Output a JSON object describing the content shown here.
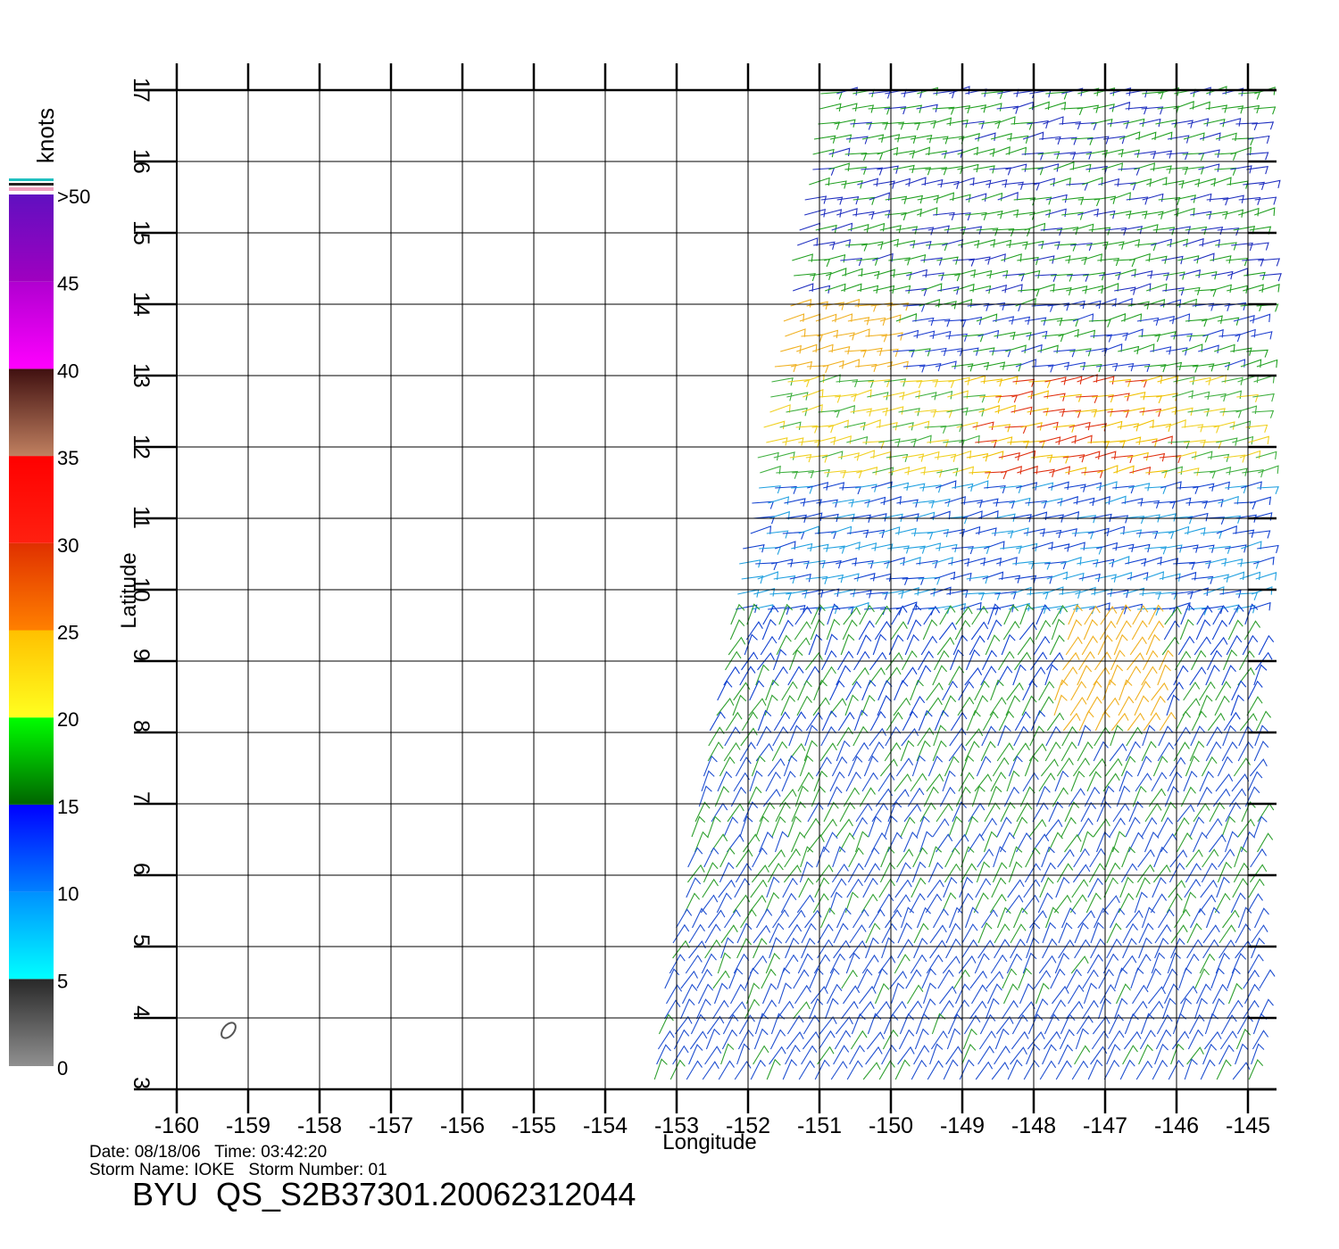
{
  "chart_data": {
    "type": "wind-map",
    "xlabel": "Longitude",
    "ylabel": "Latitude",
    "xlim": [
      -160,
      -144.6
    ],
    "ylim": [
      3,
      17
    ],
    "xticks": [
      -160,
      -159,
      -158,
      -157,
      -156,
      -155,
      -154,
      -153,
      -152,
      -151,
      -150,
      -149,
      -148,
      -147,
      -146,
      -145
    ],
    "yticks": [
      3,
      4,
      5,
      6,
      7,
      8,
      9,
      10,
      11,
      12,
      13,
      14,
      15,
      16,
      17
    ],
    "grid": true,
    "colorbar": {
      "label": "knots",
      "lim": [
        0,
        50
      ],
      "ticks": [
        0,
        5,
        10,
        15,
        20,
        25,
        30,
        35,
        40,
        45,
        {
          "value": 50,
          "label": ">50"
        }
      ],
      "colors": [
        [
          "#909090",
          "#282828"
        ],
        [
          "#00ffff",
          "#0090ff"
        ],
        [
          "#0080ff",
          "#0000ff"
        ],
        [
          "#006400",
          "#00ff00"
        ],
        [
          "#ffff20",
          "#ffc000"
        ],
        [
          "#ff8000",
          "#e03000"
        ],
        [
          "#ff2010",
          "#ff0000"
        ],
        [
          "#c08060",
          "#401010"
        ],
        [
          "#ff00ff",
          "#b000d0"
        ],
        [
          "#a000c0",
          "#6010c0"
        ]
      ]
    },
    "date_line": "Date: 08/18/06   Time: 03:42:20",
    "storm_line": "Storm Name: IOKE   Storm Number: 01",
    "title": "BYU  QS_S2B37301.20062312044"
  }
}
